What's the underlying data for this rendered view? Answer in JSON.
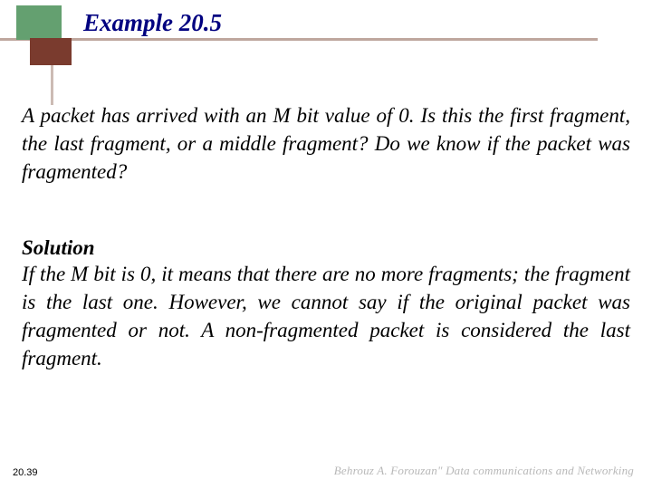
{
  "colors": {
    "title_color": "#000080",
    "green_box": "#64a070",
    "brown_box": "#7a3b2e",
    "footer_gray": "#b8b8b8",
    "background": "#ffffff",
    "text": "#000000"
  },
  "typography": {
    "title_fontsize": 27,
    "body_fontsize": 23,
    "page_number_fontsize": 11,
    "footer_fontsize": 13,
    "body_family": "Times New Roman",
    "body_style": "italic"
  },
  "header": {
    "title": "Example 20.5"
  },
  "body": {
    "question": "A packet has arrived with an M bit value of 0. Is this the first fragment, the last fragment, or a middle fragment? Do we know if the packet was fragmented?",
    "solution_label": "Solution",
    "solution_text": "If the M bit is 0, it means that there are no more fragments; the fragment is the last one. However, we cannot say if the original packet was fragmented or not. A non-fragmented packet is considered the last fragment."
  },
  "footer": {
    "page_number": "20.39",
    "credit": "Behrouz A. Forouzan\"  Data communications and Networking"
  }
}
